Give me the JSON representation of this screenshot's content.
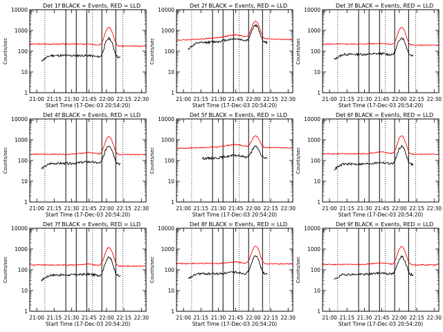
{
  "chart_data": {
    "type": "line",
    "title_suffix": "BLACK = Events, RED = LLD",
    "panels": [
      {
        "title": "Det 1f BLACK = Events, RED = LLD",
        "base": 220,
        "rise": 1.0,
        "hump": 1.0,
        "peak": 1500,
        "evratio": 0.28,
        "evstart": 0.06
      },
      {
        "title": "Det 2f BLACK = Events, RED = LLD",
        "base": 330,
        "rise": 1.35,
        "hump": 1.4,
        "peak": 2600,
        "evratio": 0.65,
        "evstart": 0.06
      },
      {
        "title": "Det 3f BLACK = Events, RED = LLD",
        "base": 220,
        "rise": 1.1,
        "hump": 1.0,
        "peak": 1400,
        "evratio": 0.32,
        "evstart": 0.06
      },
      {
        "title": "Det 4f BLACK = Events, RED = LLD",
        "base": 200,
        "rise": 1.2,
        "hump": 1.0,
        "peak": 1450,
        "evratio": 0.36,
        "evstart": 0.06
      },
      {
        "title": "Det 5f BLACK = Events, RED = LLD",
        "base": 380,
        "rise": 1.3,
        "hump": 1.2,
        "peak": 1500,
        "evratio": 0.3,
        "evstart": 0.18
      },
      {
        "title": "Det 6f BLACK = Events, RED = LLD",
        "base": 210,
        "rise": 1.2,
        "hump": 1.0,
        "peak": 1500,
        "evratio": 0.32,
        "evstart": 0.06
      },
      {
        "title": "Det 7f BLACK = Events, RED = LLD",
        "base": 170,
        "rise": 1.1,
        "hump": 1.0,
        "peak": 1200,
        "evratio": 0.33,
        "evstart": 0.06
      },
      {
        "title": "Det 8f BLACK = Events, RED = LLD",
        "base": 200,
        "rise": 1.2,
        "hump": 1.0,
        "peak": 1400,
        "evratio": 0.32,
        "evstart": 0.06
      },
      {
        "title": "Det 9f BLACK = Events, RED = LLD",
        "base": 180,
        "rise": 1.2,
        "hump": 1.0,
        "peak": 1300,
        "evratio": 0.33,
        "evstart": 0.06
      }
    ],
    "series": [
      {
        "name": "Events",
        "color": "#000000"
      },
      {
        "name": "LLD",
        "color": "#ff0000"
      }
    ],
    "x_ticks": [
      "21:00",
      "21:15",
      "21:30",
      "21:45",
      "22:00",
      "22:15",
      "22:30"
    ],
    "y_ticks": [
      "1",
      "10",
      "100",
      "1000",
      "10000"
    ],
    "ylim": [
      1,
      10000
    ],
    "y_scale": "log",
    "xlabel": "Start Time (17-Dec-03 20:54:20)",
    "ylabel": "Counts/sec",
    "solid_markers": [
      "21:25",
      "21:34",
      "21:43",
      "21:56",
      "22:08"
    ],
    "dotted_markers": [
      "21:07",
      "21:48",
      "22:14"
    ]
  }
}
